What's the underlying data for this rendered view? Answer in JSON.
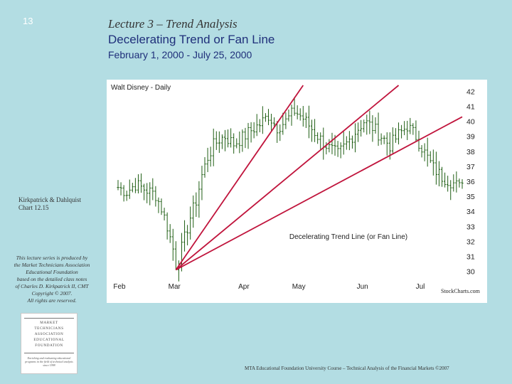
{
  "slide": {
    "number": "13",
    "title_line1": "Lecture 3 – Trend Analysis",
    "title_line2": "Decelerating Trend or Fan Line",
    "title_line3": "February 1, 2000 - July 25, 2000"
  },
  "source_note": {
    "line1": "Kirkpatrick & Dahlquist",
    "line2": "Chart 12.15"
  },
  "disclaimer": {
    "lines": [
      "This lecture series is produced by",
      "the Market Technicians Association",
      "Educational Foundation",
      "based on the detailed class notes",
      "of Charles D. Kirkpatrick II, CMT",
      "Copyright © 2007.",
      "All rights are reserved."
    ]
  },
  "logo": {
    "lines": [
      "MARKET",
      "TECHNICIANS",
      "ASSOCIATION",
      "EDUCATIONAL",
      "FOUNDATION"
    ],
    "tagline": "Enriching and evaluating educational programs in the field of technical analysis since 1998"
  },
  "footer": "MTA Educational Foundation University Course – Technical Analysis of the Financial Markets ©2007",
  "chart_data": {
    "type": "bar",
    "subtype": "ohlc",
    "title": "Walt Disney - Daily",
    "watermark": "StockCharts.com",
    "x_tick_labels": [
      "Feb",
      "Mar",
      "Apr",
      "May",
      "Jun",
      "Jul"
    ],
    "x_tick_positions": [
      0,
      19,
      43,
      62,
      84,
      104
    ],
    "y_tick_labels": [
      "42",
      "41",
      "40",
      "39",
      "38",
      "37",
      "36",
      "35",
      "34",
      "33",
      "32",
      "31",
      "30"
    ],
    "y_ticks": [
      42,
      41,
      40,
      39,
      38,
      37,
      36,
      35,
      34,
      33,
      32,
      31,
      30
    ],
    "ylim": [
      29.6,
      42.4
    ],
    "x_count": 120,
    "price_anchors": [
      [
        0,
        35.6
      ],
      [
        3,
        35.3
      ],
      [
        6,
        35.8
      ],
      [
        10,
        35.4
      ],
      [
        13,
        35.1
      ],
      [
        15,
        34.2
      ],
      [
        17,
        33.0
      ],
      [
        19,
        31.5
      ],
      [
        20,
        30.4
      ],
      [
        21,
        30.9
      ],
      [
        23,
        32.2
      ],
      [
        25,
        33.6
      ],
      [
        27,
        34.7
      ],
      [
        29,
        36.4
      ],
      [
        31,
        37.6
      ],
      [
        33,
        38.4
      ],
      [
        35,
        38.8
      ],
      [
        37,
        39.0
      ],
      [
        40,
        38.5
      ],
      [
        43,
        38.9
      ],
      [
        46,
        39.4
      ],
      [
        49,
        39.8
      ],
      [
        52,
        40.4
      ],
      [
        55,
        39.6
      ],
      [
        58,
        40.0
      ],
      [
        61,
        40.7
      ],
      [
        64,
        40.2
      ],
      [
        67,
        39.5
      ],
      [
        70,
        38.8
      ],
      [
        73,
        38.2
      ],
      [
        76,
        37.8
      ],
      [
        79,
        38.5
      ],
      [
        82,
        39.3
      ],
      [
        85,
        40.0
      ],
      [
        88,
        39.6
      ],
      [
        91,
        39.0
      ],
      [
        94,
        38.4
      ],
      [
        97,
        39.1
      ],
      [
        100,
        39.7
      ],
      [
        103,
        39.0
      ],
      [
        106,
        37.9
      ],
      [
        109,
        36.9
      ],
      [
        112,
        36.3
      ],
      [
        115,
        36.0
      ],
      [
        118,
        35.6
      ],
      [
        119,
        36.2
      ]
    ],
    "fan_lines": [
      {
        "from": [
          20,
          30.1
        ],
        "to": [
          64,
          42.4
        ]
      },
      {
        "from": [
          20,
          30.1
        ],
        "to": [
          97,
          42.4
        ]
      },
      {
        "from": [
          20,
          30.1
        ],
        "to": [
          119,
          40.3
        ]
      }
    ],
    "annotation": "Decelerating Trend Line (or Fan Line)",
    "colors": {
      "bars": "#1f5e14",
      "fan_lines": "#c0143c",
      "axis_text": "#222222"
    }
  }
}
